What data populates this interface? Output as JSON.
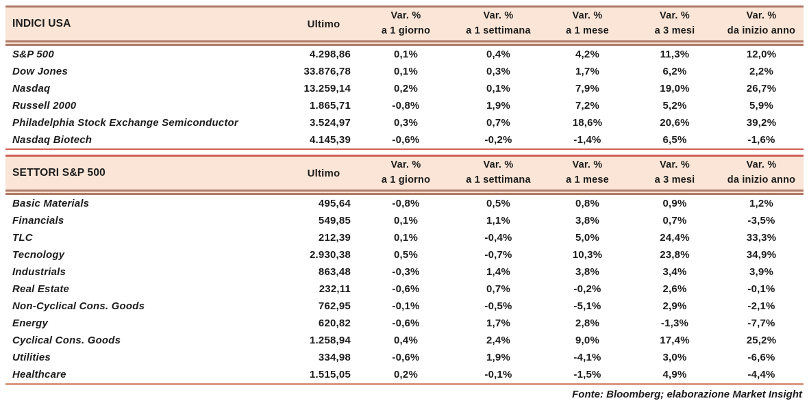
{
  "colors": {
    "header_bg": "#fae5d6",
    "rule_dark": "#b07a69",
    "rule_red": "#cf5f58",
    "rule_light": "#d9987e",
    "text": "#1c1c1c"
  },
  "column_headers": {
    "ultimo": "Ultimo",
    "var_cols": [
      {
        "line1": "Var. %",
        "line2": "a 1 giorno"
      },
      {
        "line1": "Var. %",
        "line2": "a 1 settimana"
      },
      {
        "line1": "Var. %",
        "line2": "a 1 mese"
      },
      {
        "line1": "Var. %",
        "line2": "a 3 mesi"
      },
      {
        "line1": "Var. %",
        "line2": "da inizio anno"
      }
    ]
  },
  "tables": [
    {
      "title": "INDICI USA",
      "rows": [
        {
          "name": "S&P 500",
          "ultimo": "4.298,86",
          "vars": [
            "0,1%",
            "0,4%",
            "4,2%",
            "11,3%",
            "12,0%"
          ]
        },
        {
          "name": "Dow Jones",
          "ultimo": "33.876,78",
          "vars": [
            "0,1%",
            "0,3%",
            "1,7%",
            "6,2%",
            "2,2%"
          ]
        },
        {
          "name": "Nasdaq",
          "ultimo": "13.259,14",
          "vars": [
            "0,2%",
            "0,1%",
            "7,9%",
            "19,0%",
            "26,7%"
          ]
        },
        {
          "name": "Russell 2000",
          "ultimo": "1.865,71",
          "vars": [
            "-0,8%",
            "1,9%",
            "7,2%",
            "5,2%",
            "5,9%"
          ]
        },
        {
          "name": "Philadelphia Stock Exchange Semiconductor",
          "ultimo": "3.524,97",
          "vars": [
            "0,3%",
            "0,7%",
            "18,6%",
            "20,6%",
            "39,2%"
          ]
        },
        {
          "name": "Nasdaq Biotech",
          "ultimo": "4.145,39",
          "vars": [
            "-0,6%",
            "-0,2%",
            "-1,4%",
            "6,5%",
            "-1,6%"
          ]
        }
      ]
    },
    {
      "title": "SETTORI S&P 500",
      "rows": [
        {
          "name": "Basic Materials",
          "ultimo": "495,64",
          "vars": [
            "-0,8%",
            "0,5%",
            "0,8%",
            "0,9%",
            "1,2%"
          ]
        },
        {
          "name": "Financials",
          "ultimo": "549,85",
          "vars": [
            "0,1%",
            "1,1%",
            "3,8%",
            "0,7%",
            "-3,5%"
          ]
        },
        {
          "name": "TLC",
          "ultimo": "212,39",
          "vars": [
            "0,1%",
            "-0,4%",
            "5,0%",
            "24,4%",
            "33,3%"
          ]
        },
        {
          "name": "Tecnology",
          "ultimo": "2.930,38",
          "vars": [
            "0,5%",
            "-0,7%",
            "10,3%",
            "23,8%",
            "34,9%"
          ]
        },
        {
          "name": "Industrials",
          "ultimo": "863,48",
          "vars": [
            "-0,3%",
            "1,4%",
            "3,8%",
            "3,4%",
            "3,9%"
          ]
        },
        {
          "name": "Real Estate",
          "ultimo": "232,11",
          "vars": [
            "-0,6%",
            "0,7%",
            "-0,2%",
            "2,6%",
            "-0,1%"
          ]
        },
        {
          "name": "Non-Cyclical Cons. Goods",
          "ultimo": "762,95",
          "vars": [
            "-0,1%",
            "-0,5%",
            "-5,1%",
            "2,9%",
            "-2,1%"
          ]
        },
        {
          "name": "Energy",
          "ultimo": "620,82",
          "vars": [
            "-0,6%",
            "1,7%",
            "2,8%",
            "-1,3%",
            "-7,7%"
          ]
        },
        {
          "name": "Cyclical Cons. Goods",
          "ultimo": "1.258,94",
          "vars": [
            "0,4%",
            "2,4%",
            "9,0%",
            "17,4%",
            "25,2%"
          ]
        },
        {
          "name": "Utilities",
          "ultimo": "334,98",
          "vars": [
            "-0,6%",
            "1,9%",
            "-4,1%",
            "3,0%",
            "-6,6%"
          ]
        },
        {
          "name": "Healthcare",
          "ultimo": "1.515,05",
          "vars": [
            "0,2%",
            "-0,1%",
            "-1,5%",
            "4,9%",
            "-4,4%"
          ]
        }
      ]
    }
  ],
  "footer": "Fonte: Bloomberg; elaborazione Market Insight"
}
